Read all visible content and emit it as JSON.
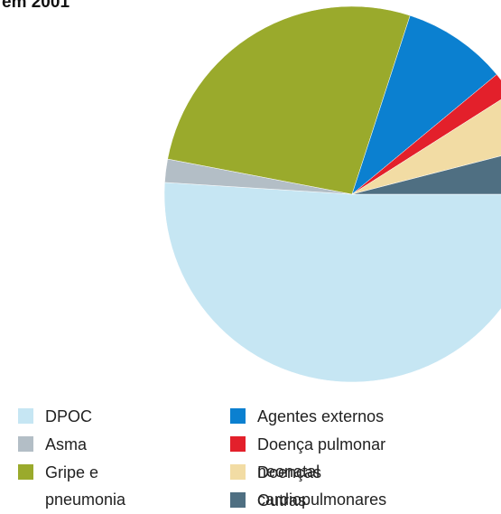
{
  "chart_data": {
    "type": "pie",
    "title": "em 2001",
    "categories": [
      "DPOC",
      "Asma",
      "Gripe e pneumonia",
      "Agentes externos",
      "Doença pulmonar neonatal",
      "Doenças cardiopulmonares",
      "Outras"
    ],
    "values": [
      51,
      2,
      27,
      9,
      2,
      5,
      4
    ],
    "colors": [
      "#c6e6f3",
      "#b3bec6",
      "#9aaa2c",
      "#0b80d0",
      "#e3202b",
      "#f2dca4",
      "#4f6f82"
    ]
  }
}
